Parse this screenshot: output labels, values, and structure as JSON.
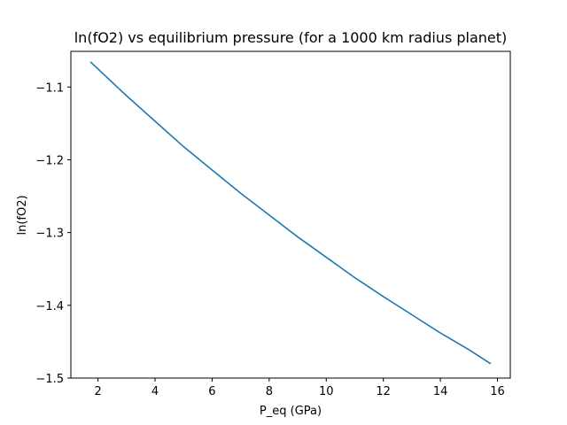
{
  "chart_data": {
    "type": "line",
    "title": "ln(fO2) vs equilibrium pressure (for a 1000 km radius planet)",
    "xlabel": "P_eq (GPa)",
    "ylabel": "ln(fO2)",
    "xlim": [
      1.05,
      16.45
    ],
    "ylim": [
      -1.5,
      -1.051
    ],
    "xticks": [
      2,
      4,
      6,
      8,
      10,
      12,
      14,
      16
    ],
    "xtick_labels": [
      "2",
      "4",
      "6",
      "8",
      "10",
      "12",
      "14",
      "16"
    ],
    "yticks": [
      -1.5,
      -1.4,
      -1.3,
      -1.2,
      -1.1
    ],
    "ytick_labels": [
      "−1.5",
      "−1.4",
      "−1.3",
      "−1.2",
      "−1.1"
    ],
    "grid": false,
    "series": [
      {
        "color": "#1f77b4",
        "x": [
          1.75,
          3.0,
          4.0,
          5.0,
          6.0,
          7.0,
          8.0,
          9.0,
          10.0,
          11.0,
          12.0,
          13.0,
          14.0,
          15.0,
          15.75
        ],
        "y": [
          -1.066,
          -1.112,
          -1.147,
          -1.182,
          -1.214,
          -1.246,
          -1.276,
          -1.306,
          -1.334,
          -1.362,
          -1.388,
          -1.413,
          -1.438,
          -1.461,
          -1.48
        ]
      }
    ]
  }
}
